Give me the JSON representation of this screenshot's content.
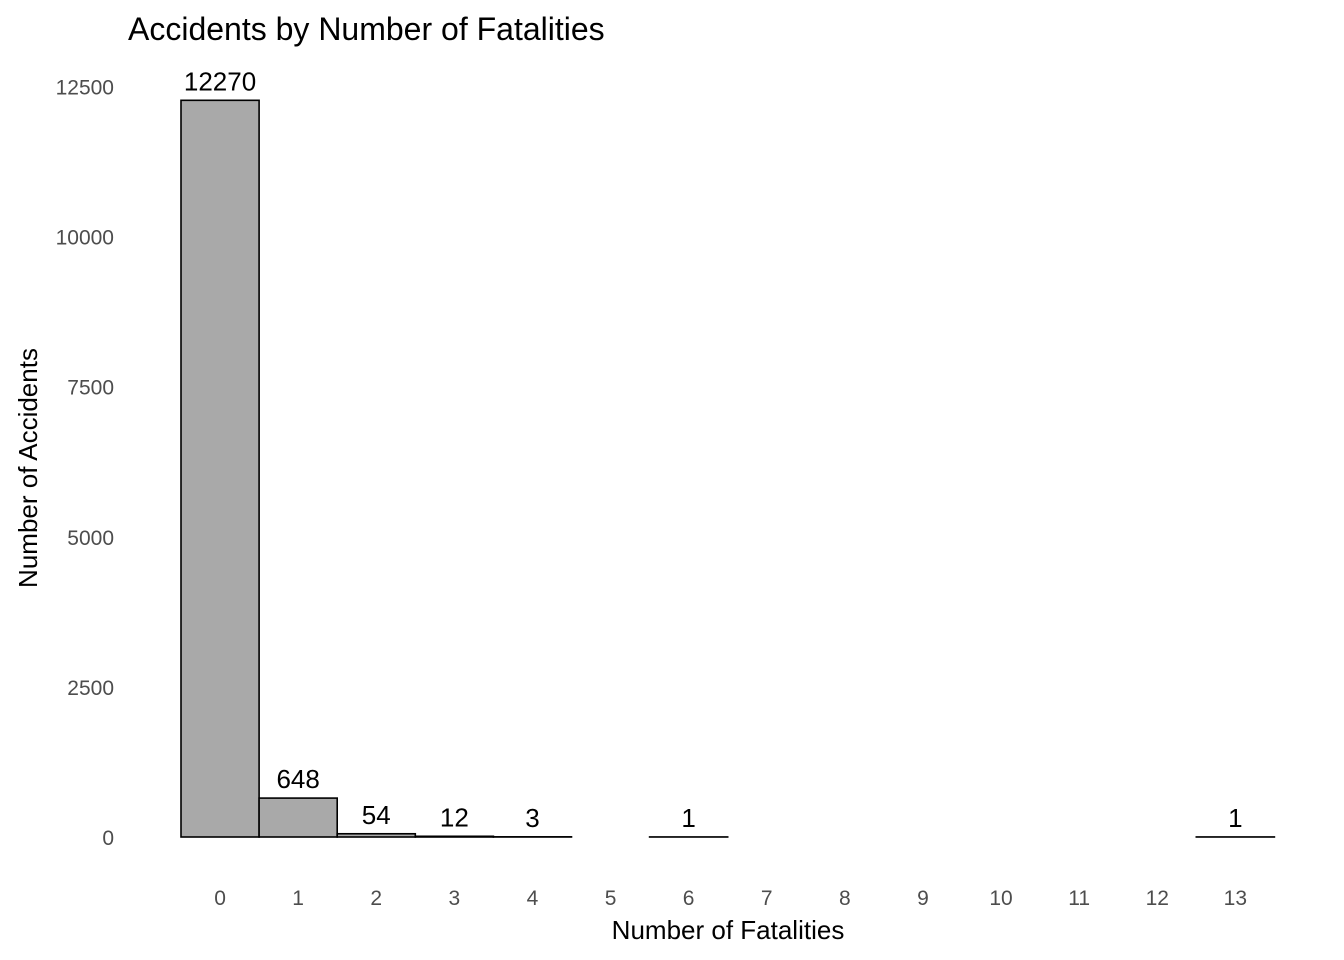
{
  "chart_data": {
    "type": "bar",
    "title": "Accidents by Number of Fatalities",
    "xlabel": "Number of Fatalities",
    "ylabel": "Number of Accidents",
    "categories": [
      "0",
      "1",
      "2",
      "3",
      "4",
      "5",
      "6",
      "7",
      "8",
      "9",
      "10",
      "11",
      "12",
      "13"
    ],
    "values": [
      12270,
      648,
      54,
      12,
      3,
      0,
      1,
      0,
      0,
      0,
      0,
      0,
      0,
      1
    ],
    "data_labels": [
      "12270",
      "648",
      "54",
      "12",
      "3",
      "",
      "1",
      "",
      "",
      "",
      "",
      "",
      "",
      "1"
    ],
    "ylim": [
      0,
      12500
    ],
    "yticks": [
      0,
      2500,
      5000,
      7500,
      10000,
      12500
    ],
    "grid": false,
    "legend": "none",
    "bar_fill": "#a9a9a9",
    "bar_outline": "#000000"
  }
}
